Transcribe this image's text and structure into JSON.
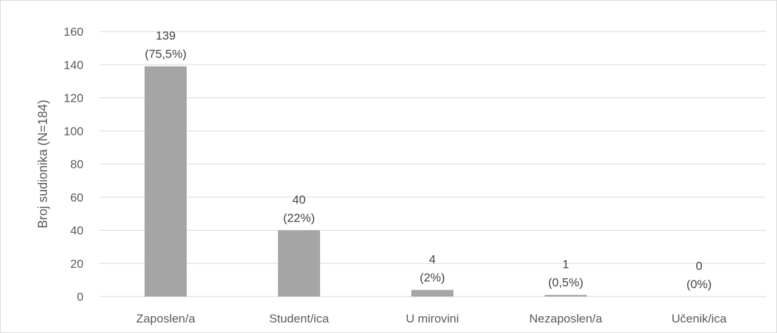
{
  "chart_data": {
    "type": "bar",
    "title": "",
    "xlabel": "",
    "ylabel": "Broj sudionika (N=184)",
    "ylim": [
      0,
      160
    ],
    "yticks": [
      0,
      20,
      40,
      60,
      80,
      100,
      120,
      140,
      160
    ],
    "categories": [
      "Zaposlen/a",
      "Student/ica",
      "U mirovini",
      "Nezaposlen/a",
      "Učenik/ica"
    ],
    "values": [
      139,
      40,
      4,
      1,
      0
    ],
    "data_labels": [
      [
        "139",
        "(75,5%)"
      ],
      [
        "40",
        "(22%)"
      ],
      [
        "4",
        "(2%)"
      ],
      [
        "1",
        "(0,5%)"
      ],
      [
        "0",
        "(0%)"
      ]
    ],
    "grid": true,
    "legend": "none",
    "colors": {
      "bar": "#a5a5a5",
      "grid": "#d9d9d9",
      "axis_text": "#595959",
      "label_text": "#404040"
    }
  }
}
